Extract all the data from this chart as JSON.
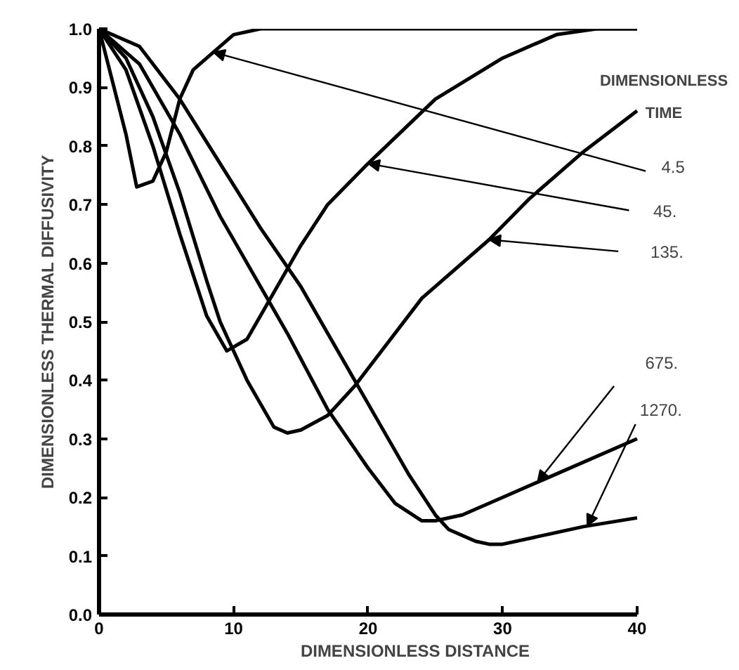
{
  "chart_data": {
    "type": "line",
    "xlabel": "DIMENSIONLESS DISTANCE",
    "ylabel": "DIMENSIONLESS THERMAL DIFFUSIVITY",
    "legend_title": "DIMENSIONLESS TIME",
    "grid": false,
    "marker": "none",
    "line_style": "solid",
    "xlim": [
      0,
      40
    ],
    "xticks": [
      0,
      10,
      20,
      30,
      40
    ],
    "ylim": [
      0,
      1.0
    ],
    "yticks": [
      {
        "value": 0,
        "label": "0.0"
      },
      0.1,
      0.2,
      0.3,
      0.4,
      0.5,
      0.6,
      0.7,
      0.8,
      0.9,
      {
        "value": 1.0,
        "label": "1.0"
      }
    ],
    "series": [
      {
        "name": "4.5",
        "color": "#000000",
        "x": [
          0,
          1,
          2,
          2.8,
          4,
          5,
          6,
          7,
          8.5,
          10,
          12,
          20,
          40
        ],
        "values": [
          1.0,
          0.91,
          0.82,
          0.73,
          0.74,
          0.79,
          0.88,
          0.93,
          0.96,
          0.99,
          1.0,
          1.0,
          1.0
        ]
      },
      {
        "name": "45.",
        "color": "#000000",
        "x": [
          0,
          2,
          4,
          6,
          8,
          9.5,
          11,
          13,
          15,
          17,
          20,
          25,
          30,
          34,
          37,
          40
        ],
        "values": [
          1.0,
          0.93,
          0.8,
          0.65,
          0.51,
          0.45,
          0.47,
          0.55,
          0.63,
          0.7,
          0.77,
          0.88,
          0.95,
          0.99,
          1.0,
          1.0
        ]
      },
      {
        "name": "135.",
        "color": "#000000",
        "x": [
          0,
          2,
          4,
          6,
          8,
          9,
          11,
          13,
          14,
          15,
          17,
          19,
          21,
          24,
          29,
          32,
          36,
          40
        ],
        "values": [
          1.0,
          0.95,
          0.85,
          0.72,
          0.57,
          0.5,
          0.4,
          0.32,
          0.31,
          0.315,
          0.34,
          0.39,
          0.45,
          0.54,
          0.64,
          0.71,
          0.79,
          0.86
        ]
      },
      {
        "name": "675.",
        "color": "#000000",
        "x": [
          0,
          3,
          6,
          9,
          12,
          14,
          17,
          20,
          22,
          24,
          25,
          27,
          30,
          34,
          40
        ],
        "values": [
          1.0,
          0.94,
          0.82,
          0.68,
          0.56,
          0.48,
          0.35,
          0.25,
          0.19,
          0.16,
          0.16,
          0.17,
          0.2,
          0.24,
          0.3
        ]
      },
      {
        "name": "1270.",
        "color": "#000000",
        "x": [
          0,
          3,
          6,
          9,
          12,
          15,
          17,
          19,
          21,
          23,
          25,
          26,
          28,
          29,
          30,
          33,
          36,
          40
        ],
        "values": [
          1.0,
          0.97,
          0.88,
          0.77,
          0.66,
          0.56,
          0.48,
          0.4,
          0.32,
          0.24,
          0.17,
          0.145,
          0.125,
          0.12,
          0.12,
          0.135,
          0.15,
          0.165
        ]
      }
    ]
  }
}
